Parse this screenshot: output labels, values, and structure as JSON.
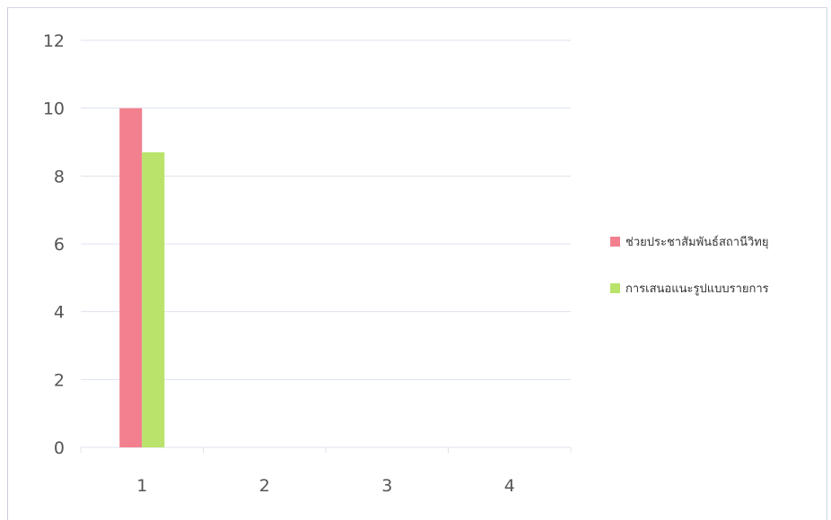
{
  "chart_data": {
    "type": "bar",
    "categories": [
      "1",
      "2",
      "3",
      "4"
    ],
    "series": [
      {
        "name": "ช่วยประชาสัมพันธ์สถานีวิทยุ",
        "values": [
          10,
          0,
          0,
          0
        ],
        "color": "#f2808e"
      },
      {
        "name": "การเสนอแนะรูปแบบรายการ",
        "values": [
          8.7,
          0,
          0,
          0
        ],
        "color": "#b9e36a"
      }
    ],
    "ylim": [
      0,
      12
    ],
    "y_ticks": [
      "0",
      "2",
      "4",
      "6",
      "8",
      "10",
      "12"
    ],
    "grid": true,
    "legend_position": "right",
    "colors": {
      "grid": "#dde3ec",
      "axis_text": "#555555"
    }
  }
}
